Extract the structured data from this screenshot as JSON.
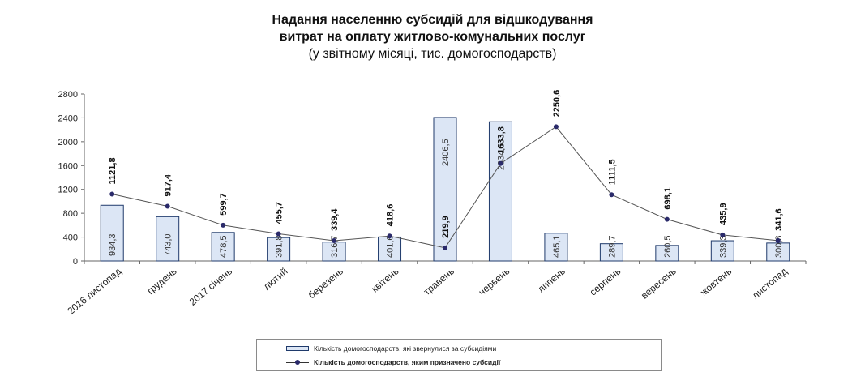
{
  "chart_data": {
    "type": "bar+line",
    "title": [
      "Надання населенню субсидій для відшкодування",
      "витрат на оплату житлово-комунальних послуг",
      "(у звітному місяці, тис. домогосподарств)"
    ],
    "categories": [
      "2016 листопад",
      "грудень",
      "2017 січень",
      "лютий",
      "березень",
      "квітень",
      "травень",
      "червень",
      "липень",
      "серпень",
      "вересень",
      "жовтень",
      "листопад"
    ],
    "ylim": [
      0,
      2800
    ],
    "yticks": [
      0,
      400,
      800,
      1200,
      1600,
      2000,
      2400,
      2800
    ],
    "series": [
      {
        "name": "Кількість домогосподарств, які звернулися за субсидіями",
        "kind": "bar",
        "color": "#dce6f5",
        "edge": "#1f3a6b",
        "values": [
          934.3,
          743.0,
          478.5,
          391.8,
          316.7,
          401.6,
          2406.5,
          2334.6,
          465.1,
          289.7,
          260.5,
          339.3,
          300.8
        ],
        "labels": [
          "934,3",
          "743,0",
          "478,5",
          "391,8",
          "316,7",
          "401,6",
          "2406,5",
          "2334,6",
          "465,1",
          "289,7",
          "260,5",
          "339,3",
          "300,8"
        ]
      },
      {
        "name": "Кількість домогосподарств, яким призначено субсидії",
        "kind": "line",
        "color": "#2a2a6a",
        "values": [
          1121.8,
          917.4,
          599.7,
          455.7,
          339.4,
          418.6,
          219.9,
          1633.8,
          2250.6,
          1111.5,
          698.1,
          435.9,
          341.6
        ],
        "labels": [
          "1121,8",
          "917,4",
          "599,7",
          "455,7",
          "339,4",
          "418,6",
          "219,9",
          "1633,8",
          "2250,6",
          "1111,5",
          "698,1",
          "435,9",
          "341,6"
        ]
      }
    ],
    "legend_position": "bottom",
    "grid": false
  }
}
